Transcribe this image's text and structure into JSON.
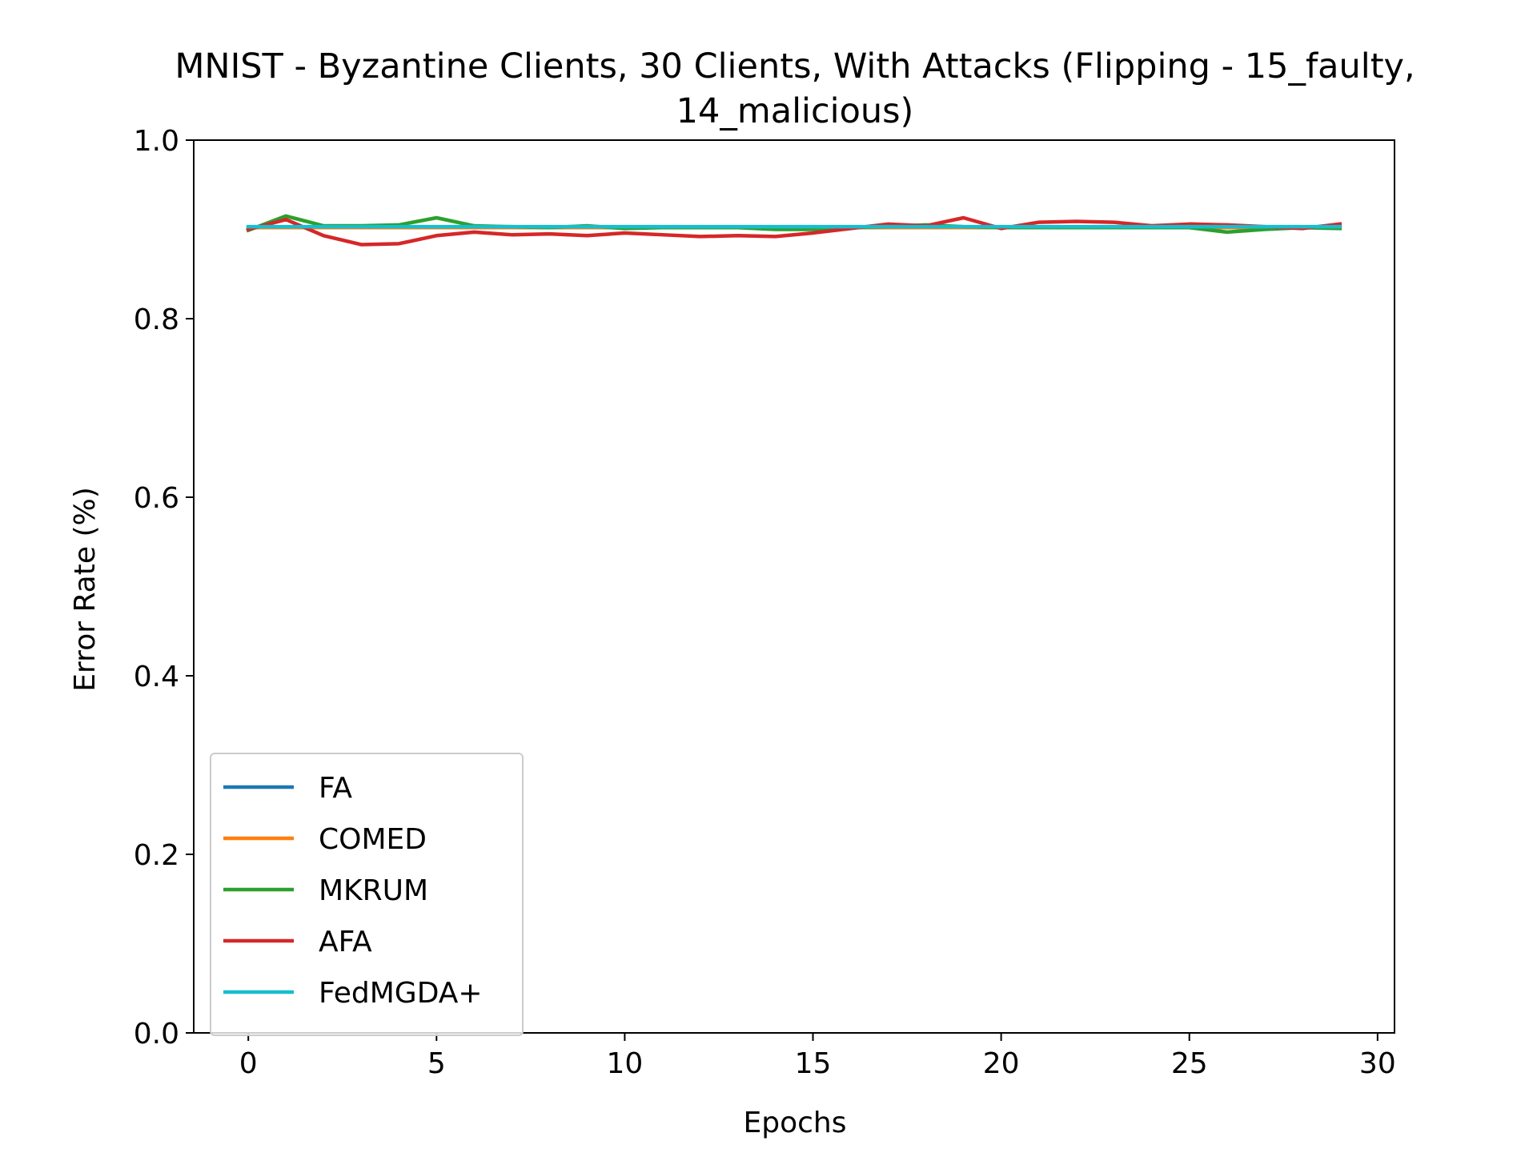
{
  "chart_data": {
    "type": "line",
    "title_line1": "MNIST - Byzantine Clients, 30 Clients, With Attacks (Flipping - 15_faulty,",
    "title_line2": "14_malicious)",
    "xlabel": "Epochs",
    "ylabel": "Error Rate (%)",
    "xlim": [
      -1.45,
      30.45
    ],
    "ylim": [
      0.0,
      1.0
    ],
    "xticks": [
      0,
      5,
      10,
      15,
      20,
      25,
      30
    ],
    "yticks": [
      0.0,
      0.2,
      0.4,
      0.6,
      0.8,
      1.0
    ],
    "xtick_labels": [
      "0",
      "5",
      "10",
      "15",
      "20",
      "25",
      "30"
    ],
    "ytick_labels": [
      "0.0",
      "0.2",
      "0.4",
      "0.6",
      "0.8",
      "1.0"
    ],
    "legend_position": "lower-left",
    "grid": false,
    "x": [
      0,
      1,
      2,
      3,
      4,
      5,
      6,
      7,
      8,
      9,
      10,
      11,
      12,
      13,
      14,
      15,
      16,
      17,
      18,
      19,
      20,
      21,
      22,
      23,
      24,
      25,
      26,
      27,
      28,
      29
    ],
    "series": [
      {
        "name": "FA",
        "color": "#1f77b4",
        "values": [
          0.902,
          0.902,
          0.902,
          0.902,
          0.902,
          0.902,
          0.902,
          0.902,
          0.902,
          0.902,
          0.902,
          0.902,
          0.902,
          0.902,
          0.902,
          0.902,
          0.902,
          0.902,
          0.902,
          0.902,
          0.902,
          0.902,
          0.902,
          0.902,
          0.902,
          0.902,
          0.902,
          0.902,
          0.902,
          0.902
        ]
      },
      {
        "name": "COMED",
        "color": "#ff7f0e",
        "values": [
          0.902,
          0.902,
          0.902,
          0.902,
          0.902,
          0.902,
          0.902,
          0.902,
          0.902,
          0.902,
          0.902,
          0.902,
          0.902,
          0.902,
          0.902,
          0.902,
          0.902,
          0.902,
          0.902,
          0.902,
          0.902,
          0.902,
          0.902,
          0.902,
          0.902,
          0.902,
          0.902,
          0.902,
          0.902,
          0.902
        ]
      },
      {
        "name": "MKRUM",
        "color": "#2ca02c",
        "values": [
          0.899,
          0.915,
          0.904,
          0.904,
          0.905,
          0.913,
          0.904,
          0.903,
          0.902,
          0.904,
          0.901,
          0.902,
          0.902,
          0.902,
          0.9,
          0.9,
          0.902,
          0.903,
          0.905,
          0.903,
          0.902,
          0.902,
          0.902,
          0.902,
          0.902,
          0.902,
          0.897,
          0.9,
          0.902,
          0.901
        ]
      },
      {
        "name": "AFA",
        "color": "#d62728",
        "values": [
          0.9,
          0.911,
          0.893,
          0.883,
          0.884,
          0.893,
          0.897,
          0.894,
          0.895,
          0.893,
          0.896,
          0.894,
          0.892,
          0.893,
          0.892,
          0.896,
          0.901,
          0.906,
          0.904,
          0.913,
          0.901,
          0.908,
          0.909,
          0.908,
          0.904,
          0.906,
          0.905,
          0.903,
          0.901,
          0.906
        ]
      },
      {
        "name": "FedMGDA+",
        "color": "#17becf",
        "values": [
          0.903,
          0.903,
          0.903,
          0.903,
          0.903,
          0.903,
          0.903,
          0.903,
          0.903,
          0.903,
          0.903,
          0.903,
          0.903,
          0.903,
          0.903,
          0.903,
          0.903,
          0.903,
          0.903,
          0.903,
          0.903,
          0.903,
          0.903,
          0.903,
          0.903,
          0.903,
          0.903,
          0.903,
          0.903,
          0.903
        ]
      }
    ]
  }
}
